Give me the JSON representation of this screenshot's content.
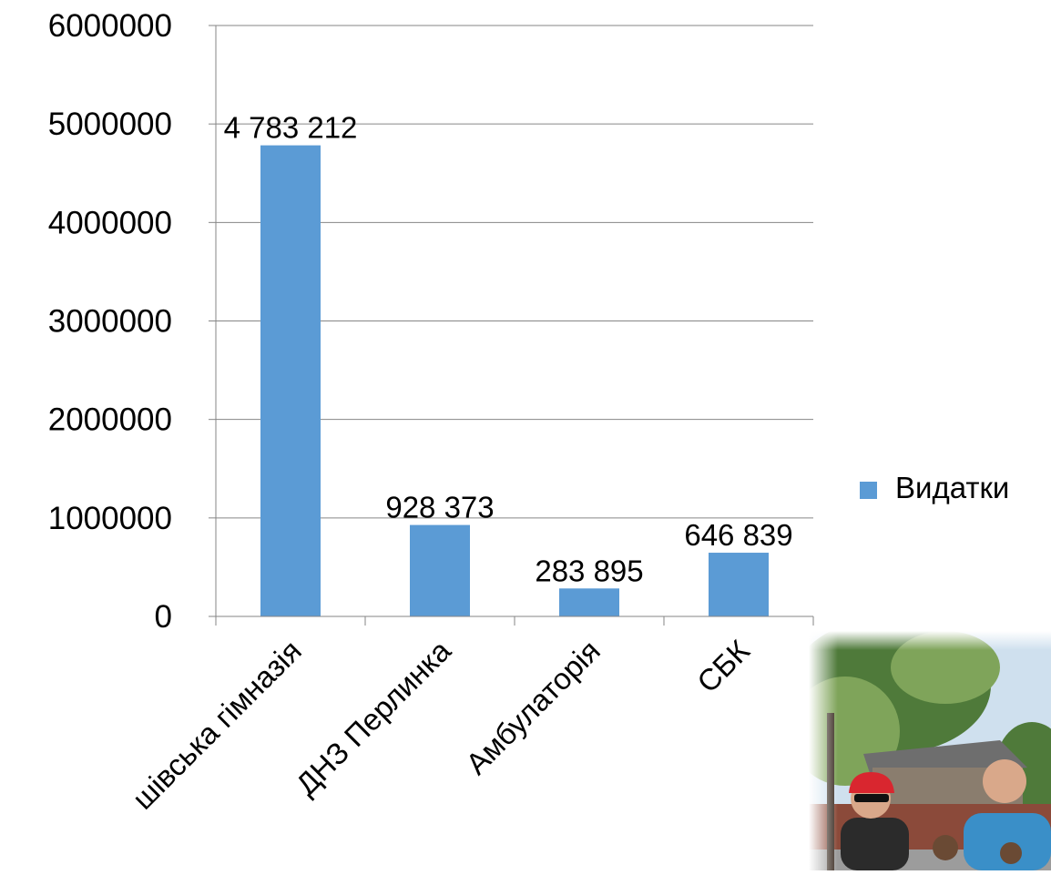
{
  "chart_data": {
    "type": "bar",
    "title": "",
    "xlabel": "",
    "ylabel": "",
    "categories": [
      "Іванівська гімназія",
      "ДНЗ Перлинка",
      "Амбулаторія",
      "СБК"
    ],
    "category_labels_visible": [
      "шівська гімназія",
      "ДНЗ Перлинка",
      "Амбулаторія",
      "СБК"
    ],
    "series": [
      {
        "name": "Видатки",
        "values": [
          4783212,
          928373,
          283895,
          646839
        ],
        "data_labels": [
          "4 783 212",
          "928 373",
          "283 895",
          "646 839"
        ],
        "color": "#5b9bd5"
      }
    ],
    "ylim": [
      0,
      6000000
    ],
    "yticks": [
      0,
      1000000,
      2000000,
      3000000,
      4000000,
      5000000,
      6000000
    ],
    "ytick_labels": [
      "0",
      "1000000",
      "2000000",
      "3000000",
      "4000000",
      "5000000",
      "6000000"
    ],
    "grid": true,
    "legend_position": "right",
    "colors": {
      "bar": "#5b9bd5",
      "grid": "#868686",
      "axis": "#868686",
      "text": "#000000"
    }
  },
  "photo": {
    "description_icon": "photo-people-icon",
    "colors": {
      "sky": "#cfe0ee",
      "tree": "#4f7a3a",
      "tree_light": "#7fa45a",
      "roof": "#6e6e6e",
      "fence": "#8b4a3a",
      "cap": "#d9262f",
      "shirt_left": "#2b2b2b",
      "shirt_right": "#3a8fc8",
      "skin": "#d9a88a",
      "road": "#9c9c9c"
    }
  }
}
